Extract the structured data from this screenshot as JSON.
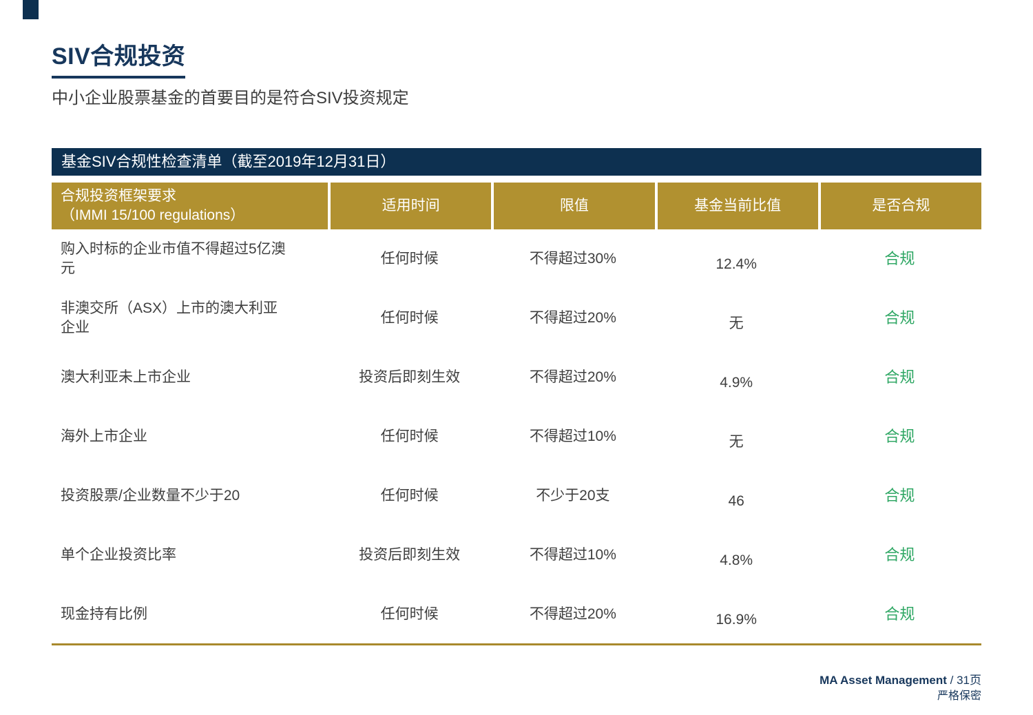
{
  "slide": {
    "title": "SIV合规投资",
    "subtitle": "中小企业股票基金的首要目的是符合SIV投资规定"
  },
  "checklist": {
    "banner_title": "基金SIV合规性检查清单（截至2019年12月31日）",
    "columns": {
      "requirement_line1": "合规投资框架要求",
      "requirement_line2": "（IMMI 15/100 regulations）",
      "timing": "适用时间",
      "limit": "限值",
      "current": "基金当前比值",
      "status": "是否合规"
    },
    "rows": [
      {
        "requirement": "购入时标的企业市值不得超过5亿澳元",
        "timing": "任何时候",
        "limit": "不得超过30%",
        "current": "12.4%",
        "status": "合规"
      },
      {
        "requirement": "非澳交所（ASX）上市的澳大利亚企业",
        "timing": "任何时候",
        "limit": "不得超过20%",
        "current": "无",
        "status": "合规"
      },
      {
        "requirement": "澳大利亚未上市企业",
        "timing": "投资后即刻生效",
        "limit": "不得超过20%",
        "current": "4.9%",
        "status": "合规"
      },
      {
        "requirement": "海外上市企业",
        "timing": "任何时候",
        "limit": "不得超过10%",
        "current": "无",
        "status": "合规"
      },
      {
        "requirement": "投资股票/企业数量不少于20",
        "timing": "任何时候",
        "limit": "不少于20支",
        "current": "46",
        "status": "合规"
      },
      {
        "requirement": "单个企业投资比率",
        "timing": "投资后即刻生效",
        "limit": "不得超过10%",
        "current": "4.8%",
        "status": "合规"
      },
      {
        "requirement": "现金持有比例",
        "timing": "任何时候",
        "limit": "不得超过20%",
        "current": "16.9%",
        "status": "合规"
      }
    ]
  },
  "footer": {
    "brand": "MA Asset Management",
    "page_suffix": " / 31页",
    "confidential": "严格保密"
  },
  "colors": {
    "navy": "#0D3050",
    "gold": "#B19130",
    "status_green": "#2FA764"
  }
}
